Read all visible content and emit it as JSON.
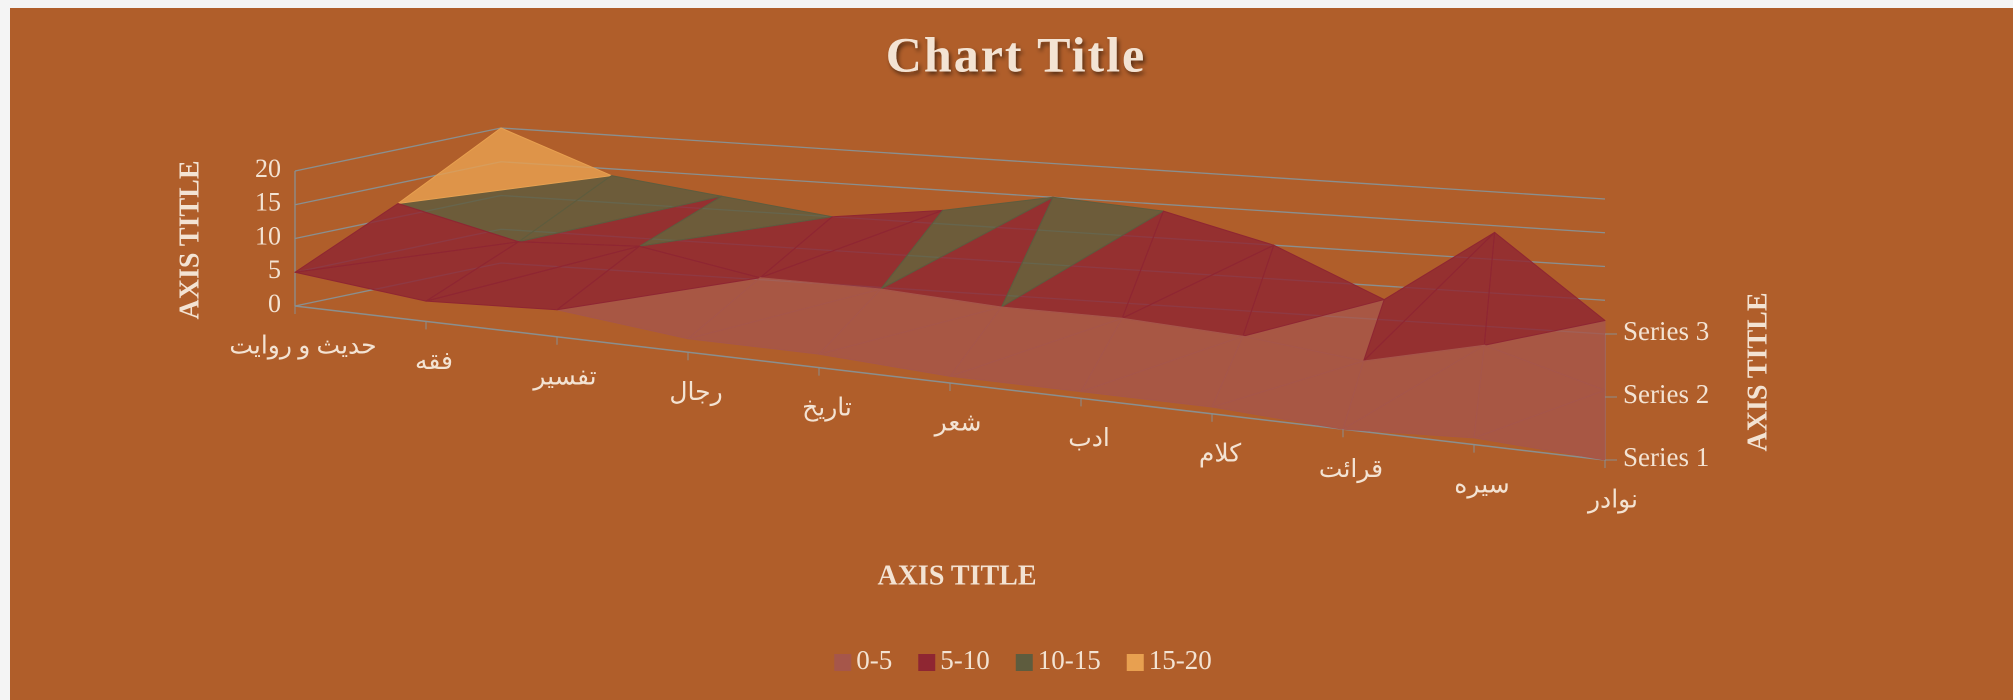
{
  "chart_data": {
    "type": "surface3d",
    "title": "Chart Title",
    "x_axis_title": "AXIS TITLE",
    "y_axis_title": "AXIS TITLE",
    "depth_axis_title": "AXIS TITLE",
    "categories": [
      "حدیث و روایت",
      "فقه",
      "تفسیر",
      "رجال",
      "تاریخ",
      "شعر",
      "ادب",
      "کلام",
      "قرائت",
      "سیره",
      "نوادر"
    ],
    "series": [
      {
        "name": "Series 1",
        "values": [
          5,
          3,
          4,
          2,
          2,
          1,
          1,
          1,
          0,
          1,
          0
        ]
      },
      {
        "name": "Series 2",
        "values": [
          12,
          8,
          9,
          6,
          6,
          5,
          5,
          4,
          2,
          6,
          1
        ]
      },
      {
        "name": "Series 3",
        "values": [
          20,
          14,
          12,
          10,
          12,
          15,
          14,
          10,
          3,
          14,
          2
        ]
      }
    ],
    "ylim": [
      0,
      20
    ],
    "yticks": [
      0,
      5,
      10,
      15,
      20
    ],
    "grid": true,
    "bands": [
      {
        "name": "0-5",
        "color": "#a6564a"
      },
      {
        "name": "5-10",
        "color": "#8f2632"
      },
      {
        "name": "10-15",
        "color": "#5e5c3e"
      },
      {
        "name": "15-20",
        "color": "#e8a050"
      }
    ],
    "legend": "bottom"
  }
}
